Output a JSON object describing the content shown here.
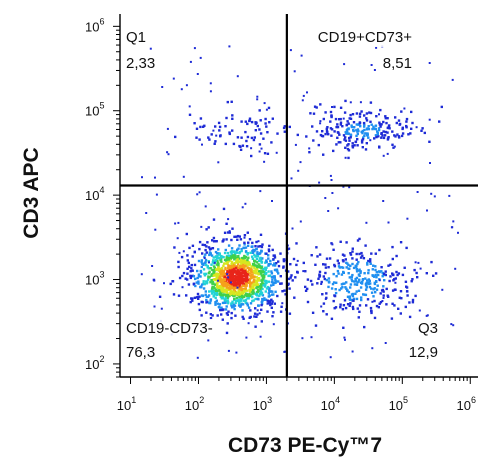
{
  "chart_data": {
    "type": "scatter",
    "subtype": "flow cytometry density dot plot",
    "title": "",
    "xlabel": "CD73 PE-Cy™7",
    "ylabel": "CD3 APC",
    "x_scale": "log",
    "y_scale": "log",
    "xlim": [
      7,
      1300000
    ],
    "ylim": [
      70,
      1400000
    ],
    "x_ticks": [
      {
        "base": "10",
        "exp": "1",
        "value": 10
      },
      {
        "base": "10",
        "exp": "2",
        "value": 100
      },
      {
        "base": "10",
        "exp": "3",
        "value": 1000
      },
      {
        "base": "10",
        "exp": "4",
        "value": 10000
      },
      {
        "base": "10",
        "exp": "5",
        "value": 100000
      },
      {
        "base": "10",
        "exp": "6",
        "value": 1000000
      }
    ],
    "y_ticks": [
      {
        "base": "10",
        "exp": "2",
        "value": 100
      },
      {
        "base": "10",
        "exp": "3",
        "value": 1000
      },
      {
        "base": "10",
        "exp": "4",
        "value": 10000
      },
      {
        "base": "10",
        "exp": "5",
        "value": 100000
      },
      {
        "base": "10",
        "exp": "6",
        "value": 1000000
      }
    ],
    "gates": {
      "x": 2000,
      "y": 13000
    },
    "quadrants": [
      {
        "name": "Q1",
        "value": "2,33"
      },
      {
        "name": "CD19+CD73+",
        "value": "8,51"
      },
      {
        "name": "CD19-CD73-",
        "value": "76,3"
      },
      {
        "name": "Q3",
        "value": "12,9"
      }
    ],
    "populations": [
      {
        "x": 350,
        "y": 1100,
        "weight": 0.5
      },
      {
        "x": 20000,
        "y": 1000,
        "weight": 0.13
      },
      {
        "x": 400,
        "y": 60000,
        "weight": 0.03
      },
      {
        "x": 25000,
        "y": 60000,
        "weight": 0.09
      }
    ],
    "color_scale": [
      "#1e2bd6",
      "#1f8ff0",
      "#22d3d6",
      "#3fd04a",
      "#d8e620",
      "#f5a11b",
      "#e8251a"
    ],
    "grid": false,
    "legend": "none"
  }
}
